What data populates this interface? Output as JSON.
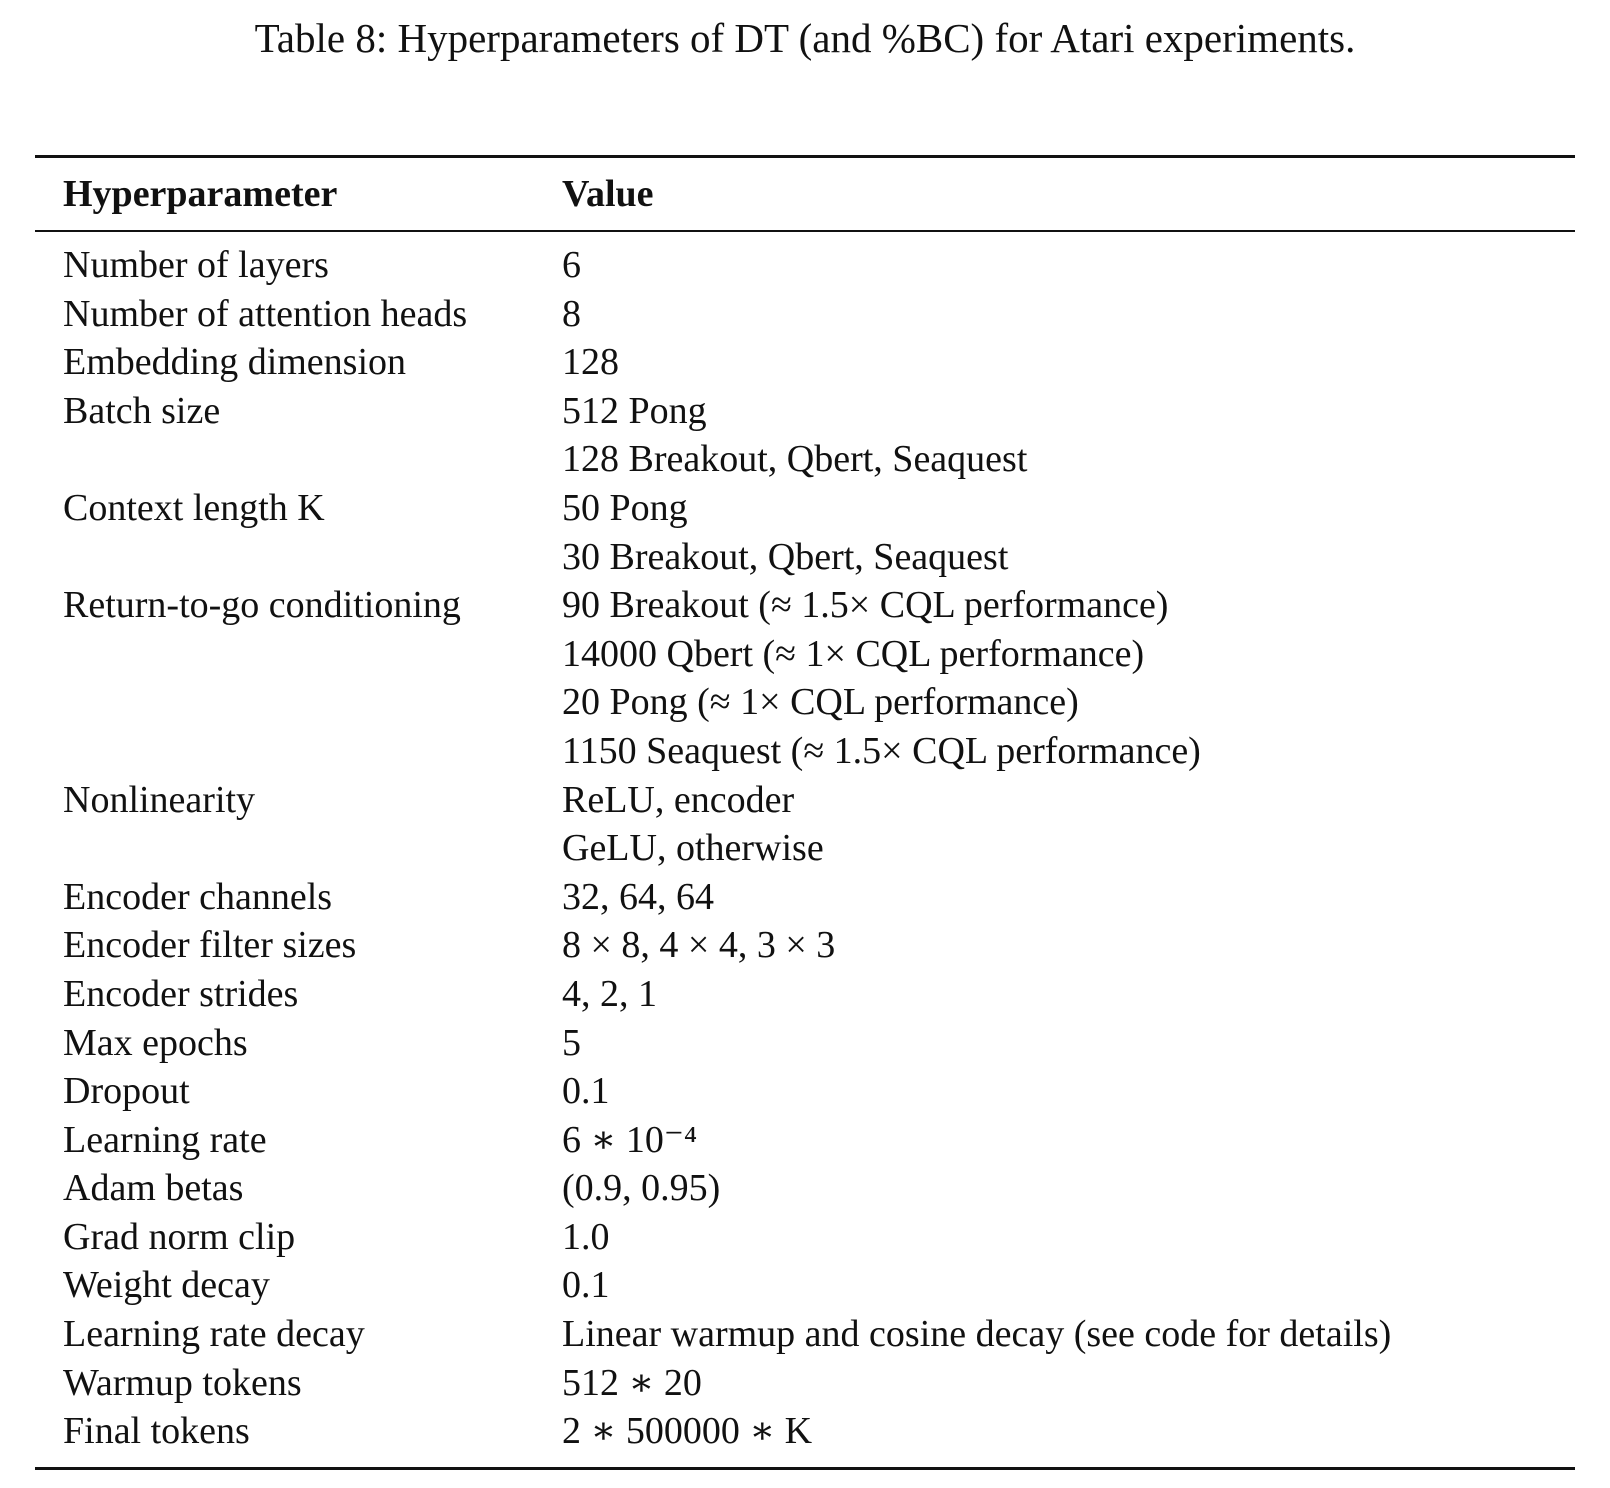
{
  "caption": "Table 8: Hyperparameters of DT (and %BC) for Atari experiments.",
  "header": {
    "name": "Hyperparameter",
    "value": "Value"
  },
  "rows": [
    {
      "name": "Number of layers",
      "values": [
        "6"
      ]
    },
    {
      "name": "Number of attention heads",
      "values": [
        "8"
      ]
    },
    {
      "name": "Embedding dimension",
      "values": [
        "128"
      ]
    },
    {
      "name": "Batch size",
      "values": [
        "512 Pong",
        "128 Breakout, Qbert, Seaquest"
      ]
    },
    {
      "name": "Context length K",
      "values": [
        "50 Pong",
        "30 Breakout, Qbert, Seaquest"
      ]
    },
    {
      "name": "Return-to-go conditioning",
      "values": [
        "90 Breakout (≈ 1.5× CQL performance)",
        "14000 Qbert (≈ 1× CQL performance)",
        "20 Pong (≈ 1× CQL performance)",
        "1150 Seaquest (≈ 1.5× CQL performance)"
      ]
    },
    {
      "name": "Nonlinearity",
      "values": [
        "ReLU, encoder",
        "GeLU, otherwise"
      ]
    },
    {
      "name": "Encoder channels",
      "values": [
        "32, 64, 64"
      ]
    },
    {
      "name": "Encoder filter sizes",
      "values": [
        "8 × 8, 4 × 4, 3 × 3"
      ]
    },
    {
      "name": "Encoder strides",
      "values": [
        "4, 2, 1"
      ]
    },
    {
      "name": "Max epochs",
      "values": [
        "5"
      ]
    },
    {
      "name": "Dropout",
      "values": [
        "0.1"
      ]
    },
    {
      "name": "Learning rate",
      "values": [
        "6 ∗ 10⁻⁴"
      ]
    },
    {
      "name": "Adam betas",
      "values": [
        "(0.9, 0.95)"
      ]
    },
    {
      "name": "Grad norm clip",
      "values": [
        "1.0"
      ]
    },
    {
      "name": "Weight decay",
      "values": [
        "0.1"
      ]
    },
    {
      "name": "Learning rate decay",
      "values": [
        "Linear warmup and cosine decay (see code for details)"
      ]
    },
    {
      "name": "Warmup tokens",
      "values": [
        "512 ∗ 20"
      ]
    },
    {
      "name": "Final tokens",
      "values": [
        "2 ∗ 500000 ∗ K"
      ]
    }
  ]
}
